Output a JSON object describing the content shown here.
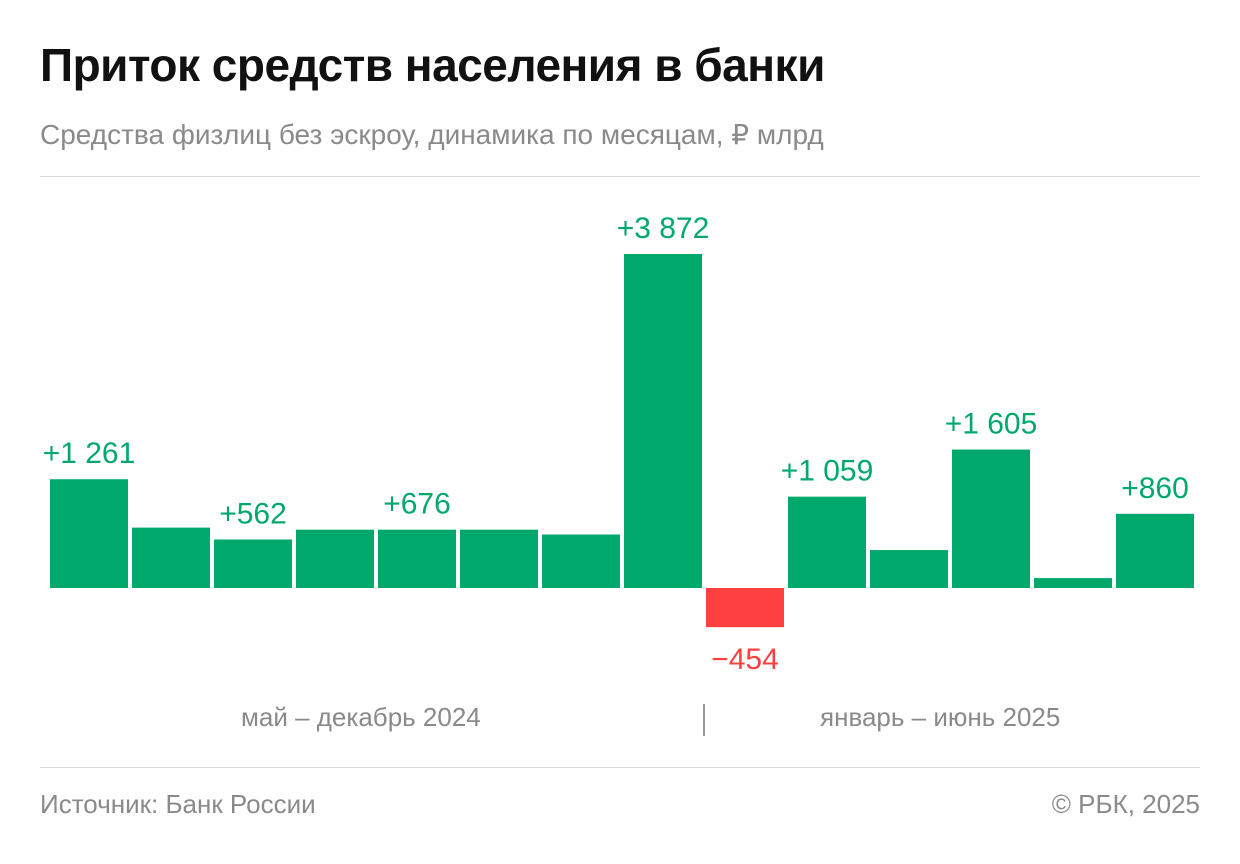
{
  "header": {
    "title": "Приток средств населения в банки",
    "subtitle": "Средства физлиц без эскроу, динамика по месяцам, ₽ млрд"
  },
  "periods": {
    "left": "май – декабрь 2024",
    "right": "январь – июнь 2025"
  },
  "footer": {
    "source": "Источник: Банк России",
    "copyright": "© РБК, 2025"
  },
  "colors": {
    "positive": "#00a86b",
    "negative": "#ff4040"
  },
  "chart_data": {
    "type": "bar",
    "categories": [
      "",
      "",
      "",
      "",
      "",
      "",
      "",
      "",
      "",
      "",
      "",
      "",
      "",
      ""
    ],
    "values": [
      1261,
      700,
      562,
      676,
      676,
      676,
      620,
      3872,
      -454,
      1059,
      440,
      1605,
      115,
      860
    ],
    "labels": [
      "+1 261",
      "",
      "+562",
      "",
      "+676",
      "",
      "",
      "+3 872",
      "−454",
      "+1 059",
      "",
      "+1 605",
      "",
      "+860"
    ],
    "title": "Приток средств населения в банки",
    "ylabel": "₽ млрд",
    "grid": false
  }
}
